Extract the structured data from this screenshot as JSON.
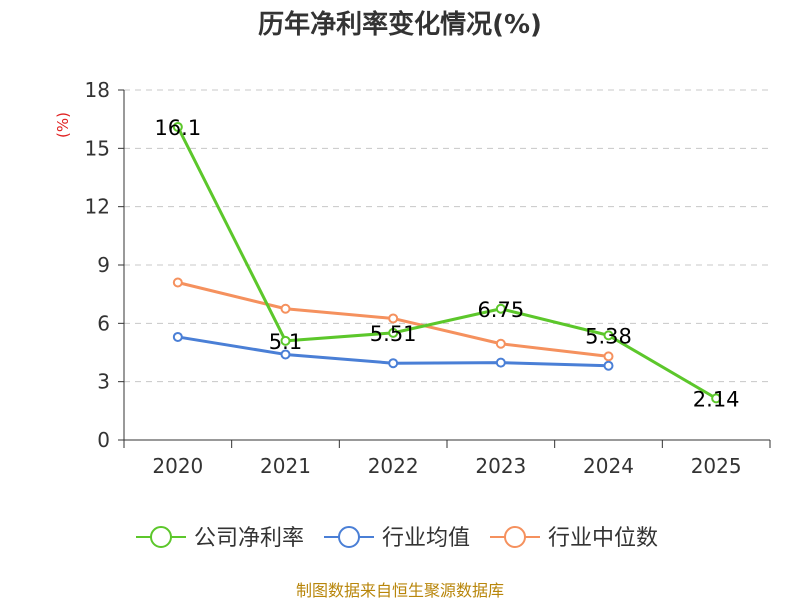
{
  "chart_data": {
    "type": "line",
    "title": "历年净利率变化情况(%)",
    "ylabel": "(%)",
    "xlabel": "",
    "categories": [
      "2020",
      "2021",
      "2022",
      "2023",
      "2024",
      "2025"
    ],
    "ylim": [
      0,
      18
    ],
    "yticks": [
      0,
      3,
      6,
      9,
      12,
      15,
      18
    ],
    "grid": true,
    "legend_position": "bottom",
    "series": [
      {
        "name": "公司净利率",
        "color": "#5cc72b",
        "values": [
          16.1,
          5.1,
          5.51,
          6.75,
          5.38,
          2.14
        ],
        "labels": [
          "16.1",
          "5.1",
          "5.51",
          "6.75",
          "5.38",
          "2.14"
        ]
      },
      {
        "name": "行业均值",
        "color": "#4a7fd6",
        "values": [
          5.3,
          4.4,
          3.95,
          3.98,
          3.82,
          null
        ]
      },
      {
        "name": "行业中位数",
        "color": "#f5915e",
        "values": [
          8.1,
          6.75,
          6.25,
          4.95,
          4.3,
          null
        ]
      }
    ]
  },
  "source_text": "制图数据来自恒生聚源数据库"
}
